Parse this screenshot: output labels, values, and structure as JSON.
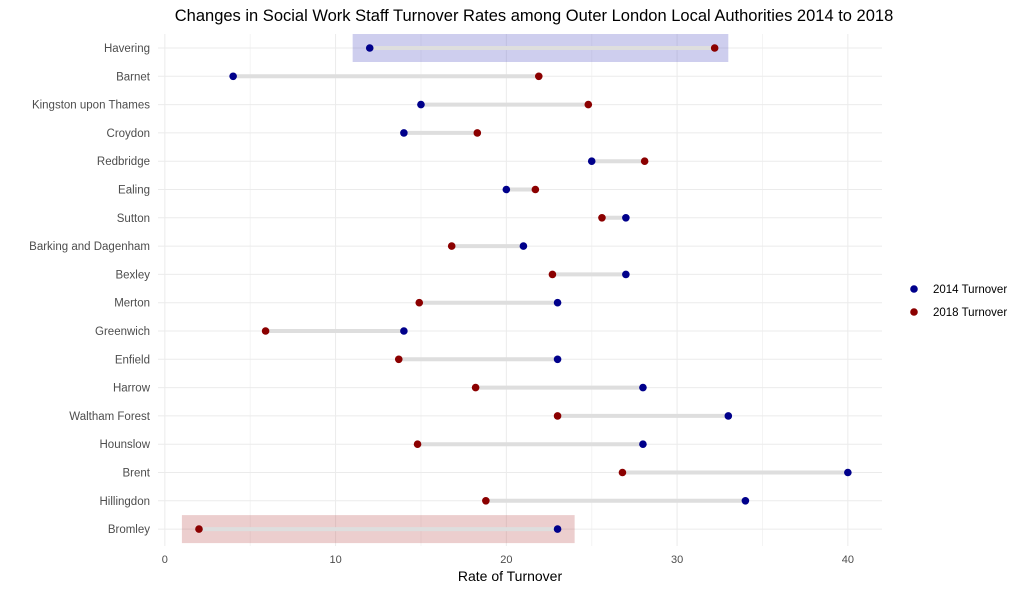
{
  "chart_data": {
    "type": "dumbbell",
    "title": "Changes in Social Work Staff Turnover Rates among Outer London Local Authorities 2014 to 2018",
    "xlabel": "Rate of Turnover",
    "ylabel": "",
    "xlim": [
      -0.4,
      42
    ],
    "x_ticks": [
      0,
      10,
      20,
      30,
      40
    ],
    "grid": true,
    "legend_position": "right",
    "series": [
      {
        "name": "2014 Turnover",
        "color": "#00008b"
      },
      {
        "name": "2018 Turnover",
        "color": "#8b0000"
      }
    ],
    "rows": [
      {
        "label": "Havering",
        "v2014": 12,
        "v2018": 32.2
      },
      {
        "label": "Barnet",
        "v2014": 4,
        "v2018": 21.9
      },
      {
        "label": "Kingston upon Thames",
        "v2014": 15,
        "v2018": 24.8
      },
      {
        "label": "Croydon",
        "v2014": 14,
        "v2018": 18.3
      },
      {
        "label": "Redbridge",
        "v2014": 25,
        "v2018": 28.1
      },
      {
        "label": "Ealing",
        "v2014": 20,
        "v2018": 21.7
      },
      {
        "label": "Sutton",
        "v2014": 27,
        "v2018": 25.6
      },
      {
        "label": "Barking and Dagenham",
        "v2014": 21,
        "v2018": 16.8
      },
      {
        "label": "Bexley",
        "v2014": 27,
        "v2018": 22.7
      },
      {
        "label": "Merton",
        "v2014": 23,
        "v2018": 14.9
      },
      {
        "label": "Greenwich",
        "v2014": 14,
        "v2018": 5.9
      },
      {
        "label": "Enfield",
        "v2014": 23,
        "v2018": 13.7
      },
      {
        "label": "Harrow",
        "v2014": 28,
        "v2018": 18.2
      },
      {
        "label": "Waltham Forest",
        "v2014": 33,
        "v2018": 23
      },
      {
        "label": "Hounslow",
        "v2014": 28,
        "v2018": 14.8
      },
      {
        "label": "Brent",
        "v2014": 40,
        "v2018": 26.8
      },
      {
        "label": "Hillingdon",
        "v2014": 34,
        "v2018": 18.8
      },
      {
        "label": "Bromley",
        "v2014": 23,
        "v2018": 2
      }
    ],
    "highlights": [
      {
        "row": "Havering",
        "x_range": [
          11,
          33
        ],
        "color": "#5c5cc8"
      },
      {
        "row": "Bromley",
        "x_range": [
          1,
          24
        ],
        "color": "#c05c5c"
      }
    ]
  }
}
